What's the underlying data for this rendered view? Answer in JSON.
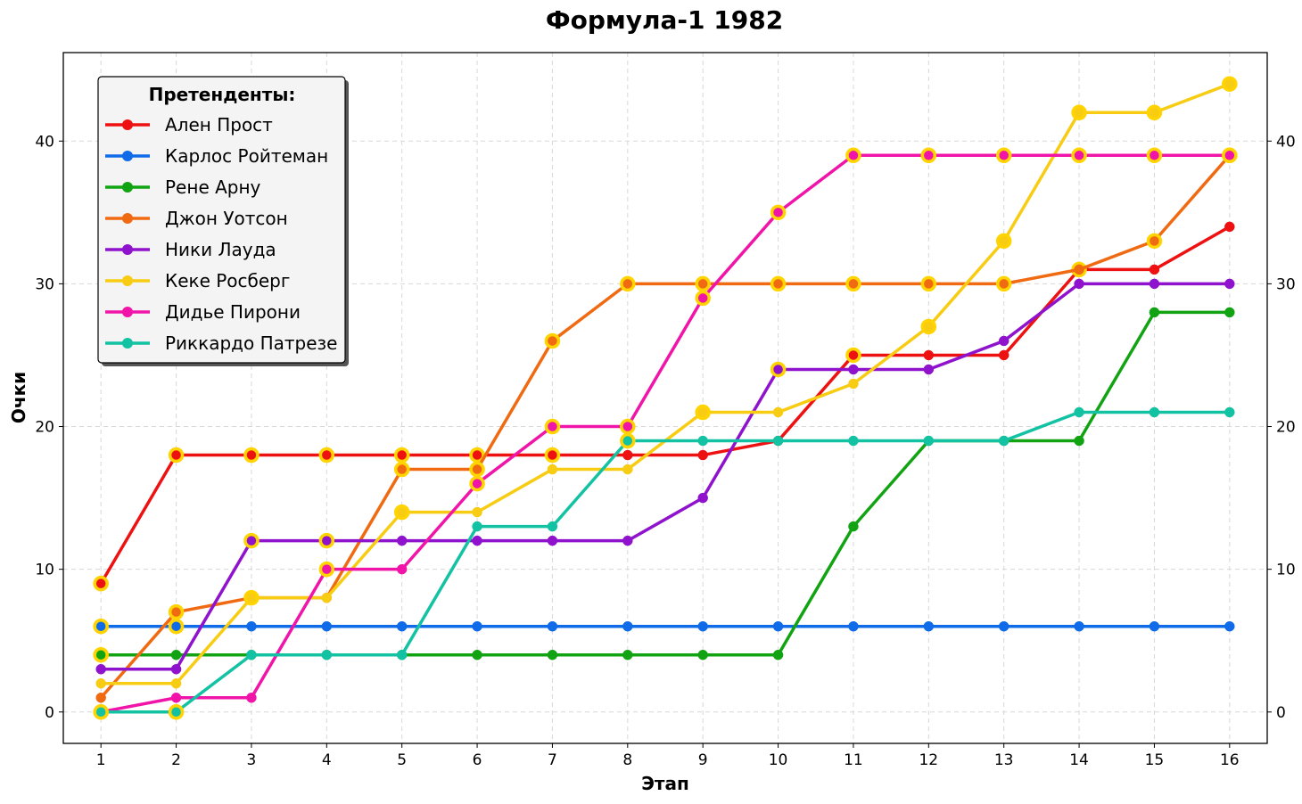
{
  "chart_data": {
    "type": "line",
    "title": "Формула-1 1982",
    "xlabel": "Этап",
    "ylabel": "Очки",
    "x": [
      1,
      2,
      3,
      4,
      5,
      6,
      7,
      8,
      9,
      10,
      11,
      12,
      13,
      14,
      15,
      16
    ],
    "xlim": [
      0.5,
      16.5
    ],
    "ylim": [
      -2.2,
      46.2
    ],
    "yticks": [
      0,
      10,
      20,
      30,
      40
    ],
    "grid": true,
    "legend": {
      "title": "Претенденты:",
      "placement": "top-left"
    },
    "highlight_color": "#FFD400",
    "series": [
      {
        "name": "Ален Прост",
        "color": "#EE1111",
        "values": [
          9,
          18,
          18,
          18,
          18,
          18,
          18,
          18,
          18,
          19,
          25,
          25,
          25,
          31,
          31,
          34
        ],
        "highlights": [
          1,
          2,
          3,
          4,
          5,
          6,
          7,
          11,
          14
        ]
      },
      {
        "name": "Карлос Ройтеман",
        "color": "#0F6BE8",
        "values": [
          6,
          6,
          6,
          6,
          6,
          6,
          6,
          6,
          6,
          6,
          6,
          6,
          6,
          6,
          6,
          6
        ],
        "highlights": [
          1,
          2
        ]
      },
      {
        "name": "Рене Арну",
        "color": "#12A312",
        "values": [
          4,
          4,
          4,
          4,
          4,
          4,
          4,
          4,
          4,
          4,
          13,
          19,
          19,
          19,
          28,
          28
        ],
        "highlights": [
          1
        ]
      },
      {
        "name": "Джон Уотсон",
        "color": "#F06A12",
        "values": [
          1,
          7,
          8,
          8,
          17,
          17,
          26,
          30,
          30,
          30,
          30,
          30,
          30,
          31,
          33,
          39
        ],
        "highlights": [
          2,
          5,
          6,
          7,
          8,
          9,
          10,
          11,
          12,
          13,
          15,
          16
        ]
      },
      {
        "name": "Ники Лауда",
        "color": "#8F12CC",
        "values": [
          3,
          3,
          12,
          12,
          12,
          12,
          12,
          12,
          15,
          24,
          24,
          24,
          26,
          30,
          30,
          30
        ],
        "highlights": [
          3,
          4,
          10
        ]
      },
      {
        "name": "Кеке Росберг",
        "color": "#F7CC12",
        "values": [
          2,
          2,
          8,
          8,
          14,
          14,
          17,
          17,
          21,
          21,
          23,
          27,
          33,
          42,
          42,
          44
        ],
        "highlights": [
          3,
          5,
          9,
          12,
          13,
          14,
          15,
          16
        ]
      },
      {
        "name": "Дидье Пирони",
        "color": "#F014A8",
        "values": [
          0,
          1,
          1,
          10,
          10,
          16,
          20,
          20,
          29,
          35,
          39,
          39,
          39,
          39,
          39,
          39
        ],
        "highlights": [
          4,
          6,
          7,
          8,
          9,
          10,
          11,
          12,
          13,
          14,
          15,
          16
        ]
      },
      {
        "name": "Риккардо Патрезе",
        "color": "#12C2A3",
        "values": [
          0,
          0,
          4,
          4,
          4,
          13,
          13,
          19,
          19,
          19,
          19,
          19,
          19,
          21,
          21,
          21
        ],
        "highlights": [
          1,
          2,
          8
        ]
      }
    ]
  }
}
